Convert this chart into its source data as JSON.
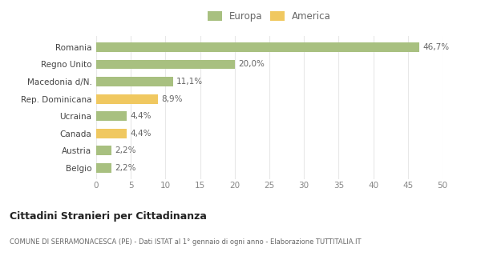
{
  "categories": [
    "Belgio",
    "Austria",
    "Canada",
    "Ucraina",
    "Rep. Dominicana",
    "Macedonia d/N.",
    "Regno Unito",
    "Romania"
  ],
  "values": [
    2.2,
    2.2,
    4.4,
    4.4,
    8.9,
    11.1,
    20.0,
    46.7
  ],
  "labels": [
    "2,2%",
    "2,2%",
    "4,4%",
    "4,4%",
    "8,9%",
    "11,1%",
    "20,0%",
    "46,7%"
  ],
  "colors": [
    "#a8c080",
    "#a8c080",
    "#f0c860",
    "#a8c080",
    "#f0c860",
    "#a8c080",
    "#a8c080",
    "#a8c080"
  ],
  "europa_color": "#a8c080",
  "america_color": "#f0c860",
  "xlim": [
    0,
    50
  ],
  "xticks": [
    0,
    5,
    10,
    15,
    20,
    25,
    30,
    35,
    40,
    45,
    50
  ],
  "title": "Cittadini Stranieri per Cittadinanza",
  "subtitle": "COMUNE DI SERRAMONACESCA (PE) - Dati ISTAT al 1° gennaio di ogni anno - Elaborazione TUTTITALIA.IT",
  "bg_color": "#ffffff",
  "grid_color": "#e8e8e8",
  "bar_height": 0.55,
  "label_fontsize": 7.5,
  "tick_fontsize": 7.5,
  "ytick_fontsize": 7.5
}
